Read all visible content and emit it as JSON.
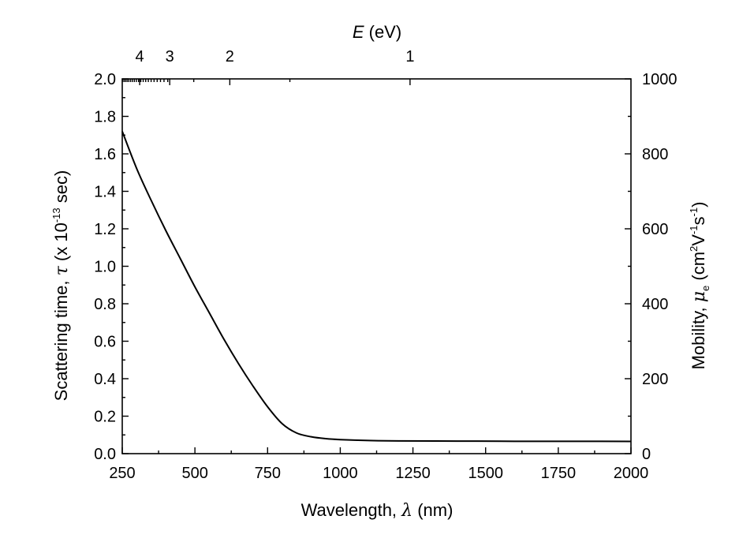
{
  "chart_data": {
    "type": "line",
    "xlabel": "Wavelength, λ (nm)",
    "xlabel_parts": {
      "pre": "Wavelength, ",
      "sym": "λ",
      "post": " (nm)"
    },
    "ylabel": "Scattering time, τ (x 10^-13 sec)",
    "ylabel_parts": {
      "pre": "Scattering time, ",
      "sym": "τ",
      "mid": " (x 10",
      "exp": "-13",
      "post": " sec)"
    },
    "y2label": "Mobility, μe (cm2V-1s-1)",
    "y2label_parts": {
      "pre": "Mobility, ",
      "sym": "μ",
      "sub": "e",
      "mid1": " (cm",
      "exp1": "2",
      "mid2": "V",
      "exp2": "-1",
      "mid3": "s",
      "exp3": "-1",
      "post": ")"
    },
    "toplabel": "E (eV)",
    "toplabel_parts": {
      "sym": "E",
      "post": " (eV)"
    },
    "xlim": [
      250,
      2000
    ],
    "ylim": [
      0,
      2.0
    ],
    "y2lim": [
      0,
      1000
    ],
    "x_ticks": [
      "250",
      "500",
      "750",
      "1000",
      "1250",
      "1500",
      "1750",
      "2000"
    ],
    "y_ticks": [
      "0.0",
      "0.2",
      "0.4",
      "0.6",
      "0.8",
      "1.0",
      "1.2",
      "1.4",
      "1.6",
      "1.8",
      "2.0"
    ],
    "y2_ticks": [
      "0",
      "200",
      "400",
      "600",
      "800",
      "1000"
    ],
    "top_ticks": [
      "4",
      "3",
      "2",
      "1"
    ],
    "top_minor_ev": [
      5,
      4.5,
      4,
      3.5,
      3,
      2,
      1
    ],
    "series": [
      {
        "name": "scattering time",
        "x": [
          250,
          300,
          350,
          400,
          450,
          500,
          550,
          600,
          650,
          700,
          750,
          800,
          850,
          900,
          950,
          1000,
          1100,
          1200,
          1400,
          1600,
          1800,
          2000
        ],
        "y": [
          1.72,
          1.52,
          1.35,
          1.19,
          1.04,
          0.89,
          0.75,
          0.61,
          0.48,
          0.36,
          0.25,
          0.16,
          0.11,
          0.09,
          0.08,
          0.075,
          0.07,
          0.068,
          0.067,
          0.066,
          0.066,
          0.065
        ]
      }
    ]
  }
}
